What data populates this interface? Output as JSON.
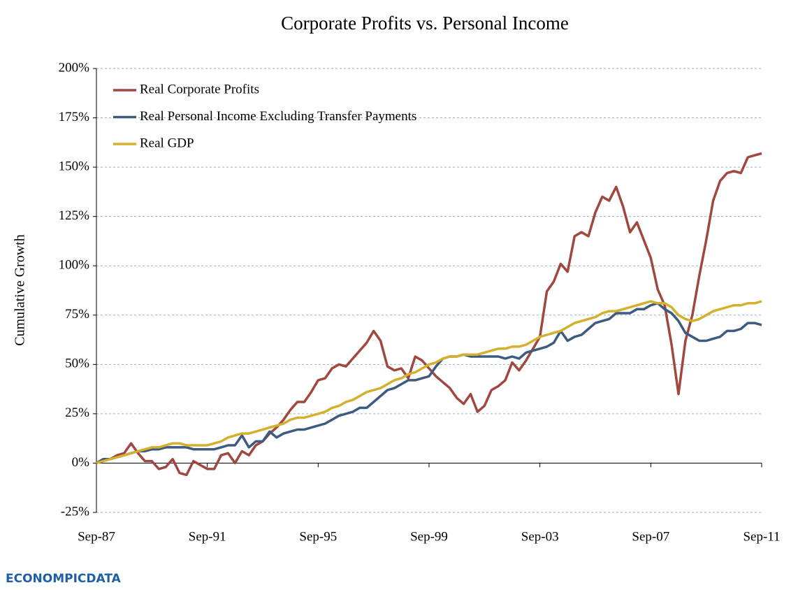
{
  "chart_data": {
    "type": "line",
    "title": "Corporate Profits vs. Personal Income",
    "y_label": "Cumulative Growth",
    "categories": [
      "Sep-87",
      null,
      null,
      null,
      null,
      null,
      null,
      null,
      null,
      null,
      null,
      null,
      null,
      null,
      null,
      null,
      "Sep-91",
      null,
      null,
      null,
      null,
      null,
      null,
      null,
      null,
      null,
      null,
      null,
      null,
      null,
      null,
      null,
      "Sep-95",
      null,
      null,
      null,
      null,
      null,
      null,
      null,
      null,
      null,
      null,
      null,
      null,
      null,
      null,
      null,
      "Sep-99",
      null,
      null,
      null,
      null,
      null,
      null,
      null,
      null,
      null,
      null,
      null,
      null,
      null,
      null,
      null,
      "Sep-03",
      null,
      null,
      null,
      null,
      null,
      null,
      null,
      null,
      null,
      null,
      null,
      null,
      null,
      null,
      null,
      "Sep-07",
      null,
      null,
      null,
      null,
      null,
      null,
      null,
      null,
      null,
      null,
      null,
      null,
      null,
      null,
      null,
      "Sep-11"
    ],
    "series": [
      {
        "name": "Real Corporate Profits",
        "color": "#a0473f",
        "values": [
          0,
          2,
          2,
          4,
          5,
          10,
          5,
          1,
          1,
          -3,
          -2,
          2,
          -5,
          -6,
          1,
          -1,
          -3,
          -3,
          4,
          5,
          0,
          6,
          4,
          9,
          11,
          15,
          18,
          22,
          27,
          31,
          31,
          36,
          42,
          43,
          48,
          50,
          49,
          53,
          57,
          61,
          67,
          62,
          49,
          47,
          48,
          43,
          54,
          52,
          48,
          44,
          41,
          38,
          33,
          30,
          35,
          26,
          29,
          37,
          39,
          42,
          51,
          47,
          52,
          58,
          64,
          87,
          92,
          101,
          97,
          115,
          117,
          115,
          127,
          135,
          133,
          140,
          130,
          117,
          122,
          113,
          104,
          88,
          80,
          60,
          35,
          62,
          75,
          95,
          113,
          133,
          143,
          147,
          148,
          147,
          155,
          156,
          157
        ]
      },
      {
        "name": "Real Personal Income Excluding Transfer Payments",
        "color": "#3d5a80",
        "values": [
          0,
          2,
          2,
          3,
          4,
          5,
          6,
          6,
          7,
          7,
          8,
          8,
          8,
          8,
          7,
          7,
          7,
          7,
          8,
          9,
          9,
          14,
          8,
          11,
          11,
          16,
          13,
          15,
          16,
          17,
          17,
          18,
          19,
          20,
          22,
          24,
          25,
          26,
          28,
          28,
          31,
          34,
          37,
          38,
          40,
          42,
          42,
          43,
          44,
          49,
          53,
          54,
          54,
          55,
          54,
          54,
          54,
          54,
          54,
          53,
          54,
          53,
          56,
          57,
          58,
          59,
          61,
          67,
          62,
          64,
          65,
          68,
          71,
          72,
          73,
          76,
          76,
          76,
          78,
          78,
          80,
          81,
          78,
          76,
          72,
          66,
          64,
          62,
          62,
          63,
          64,
          67,
          67,
          68,
          71,
          71,
          70
        ]
      },
      {
        "name": "Real GDP",
        "color": "#d4b02e",
        "values": [
          0,
          1,
          2,
          3,
          4,
          5,
          6,
          7,
          8,
          8,
          9,
          10,
          10,
          9,
          9,
          9,
          9,
          10,
          11,
          13,
          14,
          15,
          15,
          16,
          17,
          18,
          19,
          20,
          22,
          23,
          23,
          24,
          25,
          26,
          28,
          29,
          31,
          32,
          34,
          36,
          37,
          38,
          40,
          42,
          43,
          45,
          46,
          48,
          50,
          51,
          53,
          54,
          54,
          55,
          55,
          55,
          56,
          57,
          58,
          58,
          59,
          59,
          60,
          62,
          64,
          65,
          66,
          67,
          69,
          71,
          72,
          73,
          74,
          76,
          77,
          77,
          78,
          79,
          80,
          81,
          82,
          81,
          81,
          79,
          75,
          73,
          72,
          73,
          75,
          77,
          78,
          79,
          80,
          80,
          81,
          81,
          82
        ]
      }
    ],
    "ylim": [
      -25,
      200
    ],
    "yticks": [
      {
        "value": -25,
        "label": "-25%"
      },
      {
        "value": 0,
        "label": "0%"
      },
      {
        "value": 25,
        "label": "25%"
      },
      {
        "value": 50,
        "label": "50%"
      },
      {
        "value": 75,
        "label": "75%"
      },
      {
        "value": 100,
        "label": "100%"
      },
      {
        "value": 125,
        "label": "125%"
      },
      {
        "value": 150,
        "label": "150%"
      },
      {
        "value": 175,
        "label": "175%"
      },
      {
        "value": 200,
        "label": "200%"
      }
    ],
    "grid": true,
    "legend": "upper-left",
    "logo": "ECONOMPICDATA"
  }
}
